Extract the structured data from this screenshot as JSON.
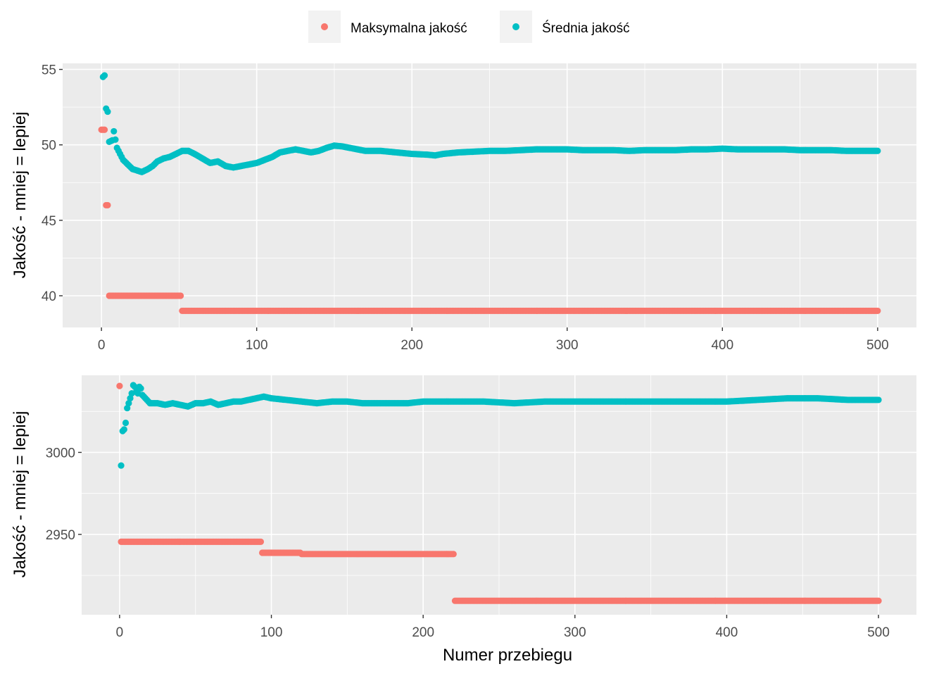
{
  "legend": {
    "position": "top",
    "items": [
      {
        "label": "Maksymalna jakość",
        "color": "#F8766D"
      },
      {
        "label": "Średnia jakość",
        "color": "#00BFC4"
      }
    ]
  },
  "colors": {
    "panel_bg": "#EBEBEB",
    "grid": "#FFFFFF",
    "max_series": "#F8766D",
    "avg_series": "#00BFC4"
  },
  "chart_data": [
    {
      "type": "scatter",
      "ylabel": "Jakość - mniej = lepiej",
      "xlabel": "",
      "xlim": [
        -25,
        525
      ],
      "ylim": [
        37.9,
        55.4
      ],
      "x_ticks": [
        0,
        100,
        200,
        300,
        400,
        500
      ],
      "y_ticks": [
        40,
        45,
        50,
        55
      ],
      "grid": true,
      "series": [
        {
          "name": "Maksymalna jakość",
          "steps": [
            {
              "from": 0,
              "to": 3,
              "value": 51.0
            },
            {
              "from": 3,
              "to": 5,
              "value": 46.0
            },
            {
              "from": 5,
              "to": 52,
              "value": 40.0
            },
            {
              "from": 52,
              "to": 500,
              "value": 39.0
            }
          ]
        },
        {
          "name": "Średnia jakość",
          "anchors": [
            [
              1,
              54.5
            ],
            [
              2,
              54.6
            ],
            [
              3,
              52.4
            ],
            [
              4,
              52.2
            ],
            [
              5,
              50.2
            ],
            [
              7,
              50.3
            ],
            [
              8,
              50.9
            ],
            [
              10,
              49.8
            ],
            [
              12,
              49.4
            ],
            [
              14,
              49.0
            ],
            [
              17,
              48.7
            ],
            [
              20,
              48.4
            ],
            [
              23,
              48.3
            ],
            [
              26,
              48.2
            ],
            [
              30,
              48.4
            ],
            [
              33,
              48.6
            ],
            [
              36,
              48.9
            ],
            [
              40,
              49.1
            ],
            [
              44,
              49.2
            ],
            [
              48,
              49.4
            ],
            [
              52,
              49.6
            ],
            [
              56,
              49.6
            ],
            [
              60,
              49.4
            ],
            [
              65,
              49.1
            ],
            [
              70,
              48.8
            ],
            [
              75,
              48.9
            ],
            [
              80,
              48.6
            ],
            [
              85,
              48.5
            ],
            [
              90,
              48.6
            ],
            [
              95,
              48.7
            ],
            [
              100,
              48.8
            ],
            [
              105,
              49.0
            ],
            [
              110,
              49.2
            ],
            [
              115,
              49.5
            ],
            [
              120,
              49.6
            ],
            [
              125,
              49.7
            ],
            [
              130,
              49.6
            ],
            [
              135,
              49.5
            ],
            [
              140,
              49.6
            ],
            [
              145,
              49.8
            ],
            [
              150,
              49.95
            ],
            [
              155,
              49.9
            ],
            [
              160,
              49.8
            ],
            [
              165,
              49.7
            ],
            [
              170,
              49.6
            ],
            [
              180,
              49.6
            ],
            [
              190,
              49.5
            ],
            [
              200,
              49.4
            ],
            [
              210,
              49.35
            ],
            [
              215,
              49.3
            ],
            [
              220,
              49.4
            ],
            [
              230,
              49.5
            ],
            [
              240,
              49.55
            ],
            [
              250,
              49.6
            ],
            [
              260,
              49.6
            ],
            [
              270,
              49.65
            ],
            [
              280,
              49.7
            ],
            [
              290,
              49.7
            ],
            [
              300,
              49.7
            ],
            [
              310,
              49.65
            ],
            [
              320,
              49.65
            ],
            [
              330,
              49.65
            ],
            [
              340,
              49.6
            ],
            [
              350,
              49.65
            ],
            [
              360,
              49.65
            ],
            [
              370,
              49.65
            ],
            [
              380,
              49.7
            ],
            [
              390,
              49.7
            ],
            [
              400,
              49.75
            ],
            [
              410,
              49.7
            ],
            [
              420,
              49.7
            ],
            [
              430,
              49.7
            ],
            [
              440,
              49.7
            ],
            [
              450,
              49.65
            ],
            [
              460,
              49.65
            ],
            [
              470,
              49.65
            ],
            [
              480,
              49.6
            ],
            [
              490,
              49.6
            ],
            [
              500,
              49.6
            ]
          ]
        }
      ]
    },
    {
      "type": "scatter",
      "ylabel": "Jakość - mniej = lepiej",
      "xlabel": "Numer przebiegu",
      "xlim": [
        -25,
        525
      ],
      "ylim": [
        2901,
        3047
      ],
      "x_ticks": [
        0,
        100,
        200,
        300,
        400,
        500
      ],
      "y_ticks": [
        2950,
        3000
      ],
      "grid": true,
      "series": [
        {
          "name": "Maksymalna jakość",
          "steps": [
            {
              "from": 0,
              "to": 1,
              "value": 3040.5
            },
            {
              "from": 1,
              "to": 94,
              "value": 2945.5
            },
            {
              "from": 94,
              "to": 120,
              "value": 2938.8
            },
            {
              "from": 120,
              "to": 221,
              "value": 2938.0
            },
            {
              "from": 221,
              "to": 500,
              "value": 2909.5
            }
          ]
        },
        {
          "name": "Średnia jakość",
          "anchors": [
            [
              1,
              2992
            ],
            [
              2,
              3013
            ],
            [
              3,
              3014
            ],
            [
              4,
              3018
            ],
            [
              5,
              3027
            ],
            [
              6,
              3030
            ],
            [
              7,
              3033
            ],
            [
              8,
              3036
            ],
            [
              9,
              3041
            ],
            [
              10,
              3040
            ],
            [
              11,
              3037
            ],
            [
              12,
              3036
            ],
            [
              13,
              3040
            ],
            [
              14,
              3039
            ],
            [
              15,
              3035
            ],
            [
              17,
              3033
            ],
            [
              20,
              3030
            ],
            [
              25,
              3030
            ],
            [
              30,
              3029
            ],
            [
              35,
              3030
            ],
            [
              40,
              3029
            ],
            [
              45,
              3028
            ],
            [
              50,
              3030
            ],
            [
              55,
              3030
            ],
            [
              60,
              3031
            ],
            [
              65,
              3029
            ],
            [
              70,
              3030
            ],
            [
              75,
              3031
            ],
            [
              80,
              3031
            ],
            [
              85,
              3032
            ],
            [
              90,
              3033
            ],
            [
              95,
              3034
            ],
            [
              100,
              3033
            ],
            [
              110,
              3032
            ],
            [
              120,
              3031
            ],
            [
              130,
              3030
            ],
            [
              140,
              3031
            ],
            [
              150,
              3031
            ],
            [
              160,
              3030
            ],
            [
              170,
              3030
            ],
            [
              180,
              3030
            ],
            [
              190,
              3030
            ],
            [
              200,
              3031
            ],
            [
              220,
              3031
            ],
            [
              240,
              3031
            ],
            [
              260,
              3030
            ],
            [
              280,
              3031
            ],
            [
              300,
              3031
            ],
            [
              320,
              3031
            ],
            [
              340,
              3031
            ],
            [
              360,
              3031
            ],
            [
              380,
              3031
            ],
            [
              400,
              3031
            ],
            [
              420,
              3032
            ],
            [
              440,
              3033
            ],
            [
              460,
              3033
            ],
            [
              480,
              3032
            ],
            [
              500,
              3032
            ]
          ]
        }
      ]
    }
  ]
}
